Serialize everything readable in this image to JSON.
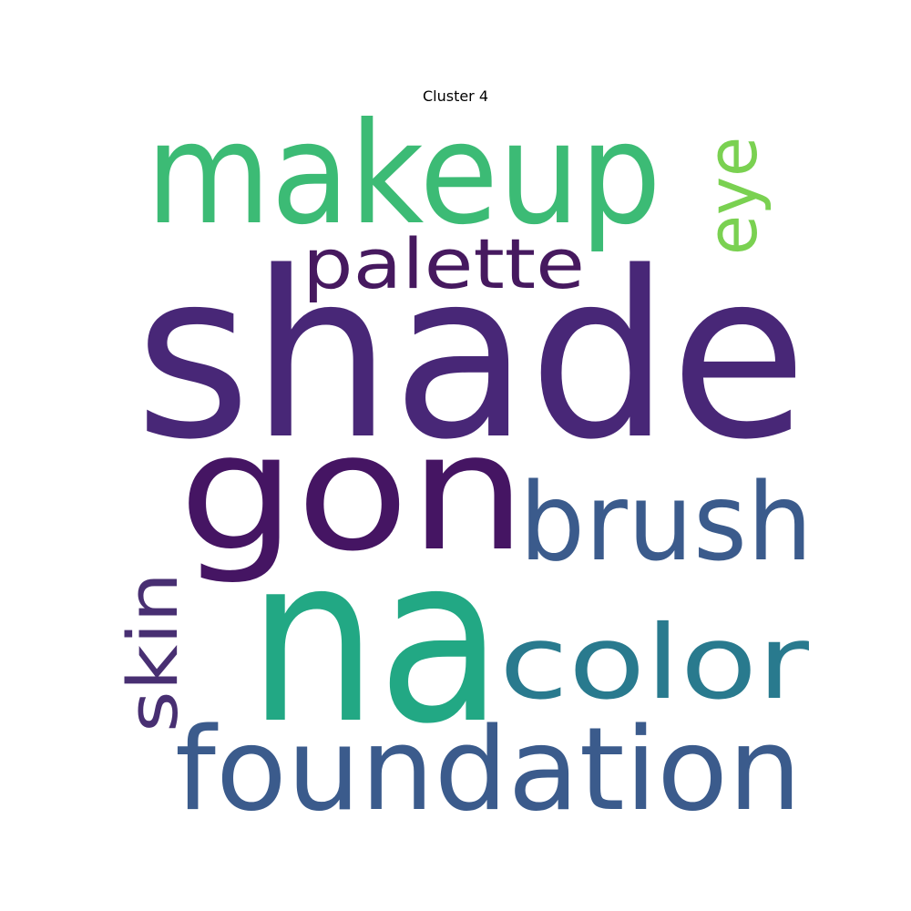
{
  "title": "Cluster 4",
  "words": [
    {
      "text": "shade",
      "color": "#482777"
    },
    {
      "text": "na",
      "color": "#22a884"
    },
    {
      "text": "gon",
      "color": "#451563"
    },
    {
      "text": "makeup",
      "color": "#3cbb75"
    },
    {
      "text": "foundation",
      "color": "#3b5b8c"
    },
    {
      "text": "brush",
      "color": "#3b5b8c"
    },
    {
      "text": "color",
      "color": "#297a8e"
    },
    {
      "text": "palette",
      "color": "#46195f"
    },
    {
      "text": "eye",
      "color": "#7ad151"
    },
    {
      "text": "skin",
      "color": "#482f72"
    }
  ]
}
